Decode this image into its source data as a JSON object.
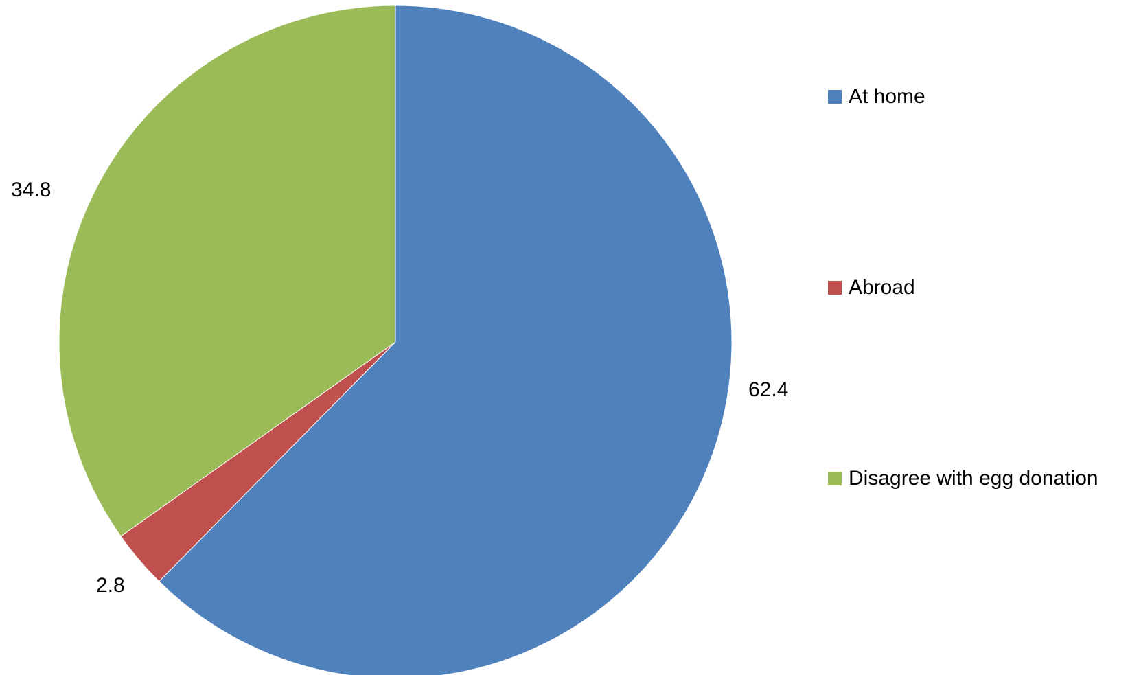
{
  "chart_data": {
    "type": "pie",
    "slices": [
      {
        "label": "At home",
        "value": 62.4,
        "color": "#4F81BD",
        "label_text": "62.4"
      },
      {
        "label": "Abroad",
        "value": 2.8,
        "color": "#C0504D",
        "label_text": "2.8"
      },
      {
        "label": "Disagree with egg donation",
        "value": 34.8,
        "color": "#9BBB59",
        "label_text": "34.8"
      }
    ],
    "start_angle": "12 o'clock",
    "direction": "clockwise",
    "legend_position": "right",
    "title": ""
  }
}
